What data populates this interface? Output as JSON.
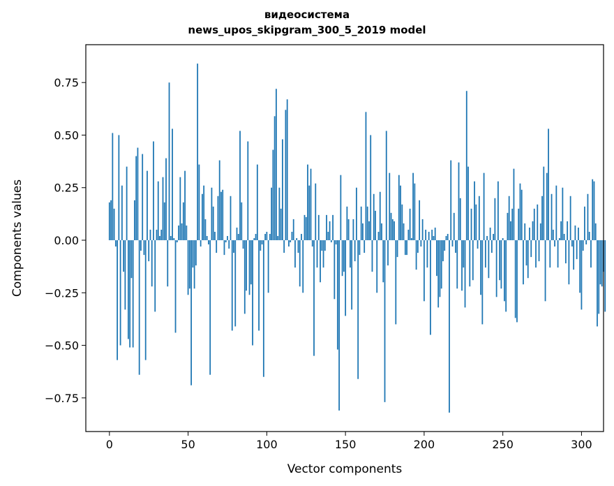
{
  "chart_data": {
    "type": "bar",
    "title": "видеосистема",
    "subtitle": "news_upos_skipgram_300_5_2019 model",
    "xlabel": "Vector components",
    "ylabel": "Components values",
    "xlim": [
      -15,
      314
    ],
    "ylim": [
      -0.91,
      0.93
    ],
    "xticks": [
      0,
      50,
      100,
      150,
      200,
      250,
      300
    ],
    "yticks": [
      -0.75,
      -0.5,
      -0.25,
      0.0,
      0.25,
      0.5,
      0.75
    ],
    "ytick_labels": [
      "−0.75",
      "−0.50",
      "−0.25",
      "0.00",
      "0.25",
      "0.50",
      "0.75"
    ],
    "bar_color": "#1f77b4",
    "grid": false,
    "legend": "none",
    "values": [
      0.18,
      0.19,
      0.51,
      0.15,
      -0.03,
      -0.57,
      0.5,
      -0.5,
      0.26,
      -0.15,
      -0.33,
      0.35,
      -0.47,
      -0.51,
      -0.18,
      -0.51,
      0.19,
      0.4,
      0.44,
      -0.64,
      -0.05,
      0.41,
      -0.07,
      -0.57,
      0.33,
      -0.1,
      0.05,
      -0.22,
      0.47,
      -0.34,
      0.05,
      0.28,
      0.02,
      0.05,
      0.3,
      0.18,
      0.39,
      -0.22,
      0.75,
      0.02,
      0.53,
      0.01,
      -0.44,
      -0.01,
      0.07,
      0.3,
      0.08,
      0.18,
      0.33,
      0.07,
      -0.26,
      -0.23,
      -0.69,
      -0.13,
      -0.23,
      -0.12,
      0.84,
      0.36,
      -0.03,
      0.22,
      0.26,
      0.1,
      0.02,
      -0.02,
      -0.64,
      0.25,
      0.16,
      0.04,
      -0.06,
      0.21,
      0.38,
      0.23,
      0.24,
      -0.07,
      -0.01,
      0.02,
      -0.04,
      0.21,
      -0.43,
      -0.06,
      -0.41,
      0.06,
      0.03,
      0.52,
      0.18,
      -0.04,
      -0.35,
      -0.24,
      0.47,
      -0.26,
      -0.21,
      -0.5,
      0.01,
      0.03,
      0.36,
      -0.43,
      -0.05,
      -0.02,
      -0.65,
      0.03,
      0.04,
      -0.25,
      0.03,
      0.25,
      0.43,
      0.59,
      0.72,
      0.02,
      0.25,
      0.15,
      0.48,
      -0.06,
      0.62,
      0.67,
      -0.03,
      -0.01,
      0.04,
      0.1,
      -0.13,
      0.01,
      -0.06,
      -0.22,
      0.03,
      -0.25,
      0.12,
      0.11,
      0.36,
      0.26,
      0.34,
      -0.03,
      -0.55,
      0.27,
      -0.13,
      0.12,
      -0.2,
      -0.05,
      -0.13,
      -0.05,
      0.12,
      0.04,
      0.09,
      -0.01,
      0.12,
      -0.28,
      -0.02,
      -0.52,
      -0.81,
      0.31,
      -0.17,
      -0.15,
      -0.36,
      0.16,
      0.1,
      -0.13,
      -0.33,
      0.1,
      -0.1,
      0.25,
      -0.66,
      -0.07,
      0.16,
      0.08,
      -0.06,
      0.61,
      0.16,
      0.09,
      0.5,
      -0.15,
      0.22,
      0.14,
      -0.25,
      0.04,
      0.23,
      0.08,
      -0.2,
      -0.77,
      0.52,
      -0.12,
      0.32,
      0.13,
      0.1,
      0.09,
      -0.4,
      -0.08,
      0.31,
      0.26,
      0.17,
      0.08,
      -0.07,
      -0.07,
      0.05,
      0.15,
      0.01,
      0.32,
      0.27,
      -0.14,
      -0.06,
      0.19,
      -0.03,
      0.1,
      -0.29,
      0.05,
      -0.13,
      0.04,
      -0.45,
      0.05,
      0.02,
      0.06,
      -0.17,
      -0.32,
      -0.27,
      -0.23,
      -0.1,
      -0.05,
      0.02,
      0.03,
      -0.82,
      0.38,
      -0.03,
      0.13,
      -0.06,
      -0.23,
      0.37,
      0.2,
      -0.24,
      -0.13,
      -0.32,
      0.71,
      0.35,
      -0.22,
      0.15,
      -0.19,
      0.28,
      0.17,
      -0.04,
      0.21,
      -0.26,
      -0.4,
      0.32,
      -0.13,
      0.02,
      -0.18,
      0.06,
      -0.06,
      0.03,
      0.2,
      -0.27,
      0.28,
      -0.19,
      -0.23,
      0.01,
      -0.29,
      -0.34,
      0.13,
      0.21,
      0.09,
      0.15,
      0.34,
      -0.37,
      -0.39,
      0.15,
      0.27,
      0.24,
      -0.21,
      0.08,
      -0.12,
      -0.18,
      0.06,
      -0.08,
      0.09,
      0.15,
      -0.13,
      0.17,
      -0.1,
      0.08,
      0.21,
      0.35,
      -0.29,
      0.32,
      0.53,
      -0.13,
      0.22,
      0.05,
      -0.03,
      0.26,
      -0.13,
      0.01,
      0.09,
      0.25,
      0.03,
      -0.11,
      0.09,
      -0.21,
      0.21,
      -0.03,
      -0.14,
      0.07,
      -0.09,
      0.06,
      -0.25,
      -0.33,
      -0.05,
      0.16,
      -0.02,
      0.22,
      0.04,
      -0.13,
      0.29,
      0.28,
      0.08,
      -0.41,
      -0.35,
      -0.21,
      -0.22,
      -0.15,
      -0.34
    ]
  }
}
